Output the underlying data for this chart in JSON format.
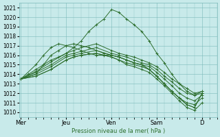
{
  "xlabel": "Pression niveau de la mer( hPa )",
  "bg_color": "#c8eaea",
  "grid_color": "#7ab8b8",
  "line_color": "#2d6e2d",
  "ylim": [
    1009.5,
    1021.5
  ],
  "yticks": [
    1010,
    1011,
    1012,
    1013,
    1014,
    1015,
    1016,
    1017,
    1018,
    1019,
    1020,
    1021
  ],
  "xtick_labels": [
    "Mer",
    "Jeu",
    "Ven",
    "Sam",
    "D"
  ],
  "xtick_positions": [
    0,
    24,
    48,
    72,
    96
  ],
  "xlim": [
    -1,
    104
  ],
  "series": [
    [
      0,
      1013.5,
      4,
      1014.0,
      8,
      1014.5,
      12,
      1015.0,
      16,
      1015.5,
      20,
      1015.8,
      24,
      1016.2,
      28,
      1016.8,
      32,
      1017.5,
      36,
      1018.5,
      40,
      1019.2,
      44,
      1019.8,
      48,
      1020.8,
      52,
      1020.5,
      56,
      1019.8,
      60,
      1019.2,
      64,
      1018.5,
      68,
      1017.5,
      72,
      1016.2,
      76,
      1015.2,
      80,
      1014.0,
      84,
      1013.0,
      88,
      1012.2,
      92,
      1011.8,
      96,
      1012.2
    ],
    [
      0,
      1013.5,
      8,
      1014.3,
      16,
      1015.3,
      24,
      1016.2,
      28,
      1016.5,
      32,
      1016.8,
      40,
      1017.2,
      48,
      1016.5,
      52,
      1016.2,
      56,
      1016.0,
      60,
      1015.8,
      64,
      1015.5,
      68,
      1015.2,
      72,
      1014.8,
      76,
      1014.2,
      80,
      1013.5,
      84,
      1013.0,
      88,
      1012.5,
      92,
      1012.0,
      96,
      1012.2
    ],
    [
      0,
      1013.5,
      8,
      1014.2,
      16,
      1015.0,
      24,
      1016.0,
      28,
      1016.2,
      32,
      1016.4,
      40,
      1016.8,
      48,
      1016.2,
      52,
      1016.0,
      56,
      1015.8,
      60,
      1015.5,
      64,
      1015.2,
      68,
      1015.0,
      72,
      1014.5,
      76,
      1013.8,
      80,
      1013.2,
      84,
      1012.5,
      88,
      1012.0,
      92,
      1011.8,
      96,
      1012.0
    ],
    [
      0,
      1013.5,
      8,
      1014.0,
      16,
      1014.8,
      24,
      1015.8,
      28,
      1016.0,
      32,
      1016.2,
      40,
      1016.5,
      48,
      1016.0,
      52,
      1015.8,
      56,
      1015.5,
      60,
      1015.2,
      64,
      1015.0,
      68,
      1014.8,
      72,
      1014.2,
      76,
      1013.5,
      80,
      1012.8,
      84,
      1012.0,
      88,
      1011.5,
      92,
      1011.2,
      96,
      1011.8
    ],
    [
      0,
      1013.5,
      8,
      1013.8,
      16,
      1014.5,
      24,
      1015.5,
      28,
      1015.8,
      32,
      1016.0,
      40,
      1016.2,
      48,
      1015.8,
      52,
      1015.5,
      56,
      1015.2,
      60,
      1015.0,
      64,
      1014.8,
      68,
      1014.5,
      72,
      1013.8,
      76,
      1013.0,
      80,
      1012.2,
      84,
      1011.5,
      88,
      1011.0,
      92,
      1010.8,
      96,
      1011.5
    ],
    [
      0,
      1013.5,
      8,
      1013.8,
      16,
      1014.5,
      24,
      1015.5,
      28,
      1015.8,
      32,
      1016.0,
      40,
      1016.2,
      48,
      1015.8,
      52,
      1015.5,
      56,
      1015.0,
      60,
      1014.8,
      64,
      1014.5,
      68,
      1014.2,
      72,
      1013.5,
      76,
      1012.8,
      80,
      1012.0,
      84,
      1011.2,
      88,
      1010.5,
      92,
      1010.2,
      96,
      1011.0
    ],
    [
      0,
      1013.5,
      8,
      1014.0,
      16,
      1016.0,
      20,
      1016.5,
      24,
      1017.0,
      28,
      1017.2,
      32,
      1017.0,
      36,
      1016.8,
      40,
      1016.5,
      44,
      1016.2,
      48,
      1016.0,
      52,
      1015.8,
      56,
      1015.5,
      60,
      1015.2,
      64,
      1015.0,
      68,
      1014.5,
      72,
      1013.8,
      76,
      1013.0,
      80,
      1012.2,
      84,
      1011.5,
      88,
      1010.8,
      92,
      1010.5,
      96,
      1012.0
    ],
    [
      0,
      1013.5,
      8,
      1015.0,
      12,
      1016.0,
      16,
      1016.8,
      20,
      1017.2,
      24,
      1017.0,
      28,
      1016.8,
      32,
      1016.5,
      36,
      1016.2,
      40,
      1016.0,
      44,
      1016.0,
      48,
      1016.0,
      52,
      1015.8,
      56,
      1015.5,
      60,
      1015.2,
      64,
      1015.0,
      68,
      1014.5,
      72,
      1013.8,
      76,
      1013.0,
      80,
      1012.2,
      84,
      1011.5,
      88,
      1010.8,
      92,
      1010.5,
      96,
      1012.0
    ]
  ]
}
